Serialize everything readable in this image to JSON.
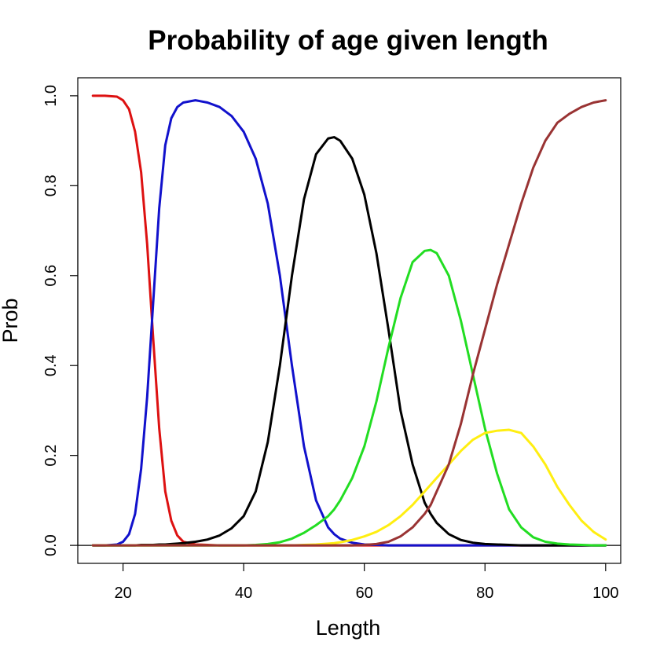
{
  "chart_data": {
    "type": "line",
    "title": "Probability of age given length",
    "xlabel": "Length",
    "ylabel": "Prob",
    "xlim": [
      12.5,
      102.5
    ],
    "ylim": [
      -0.04,
      1.04
    ],
    "xticks": [
      20,
      40,
      60,
      80,
      100
    ],
    "xtick_labels": [
      "20",
      "40",
      "60",
      "80",
      "100"
    ],
    "yticks": [
      0,
      0.2,
      0.4,
      0.6,
      0.8,
      1
    ],
    "ytick_labels": [
      "0.0",
      "0.2",
      "0.4",
      "0.6",
      "0.8",
      "1.0"
    ],
    "grid": false,
    "hline": 0,
    "x": [
      15,
      17,
      19,
      20,
      21,
      22,
      23,
      24,
      25,
      26,
      27,
      28,
      29,
      30,
      32,
      34,
      36,
      38,
      40,
      42,
      44,
      46,
      48,
      50,
      52,
      54,
      55,
      56,
      58,
      60,
      62,
      64,
      66,
      68,
      70,
      71,
      72,
      74,
      76,
      78,
      80,
      82,
      84,
      86,
      88,
      90,
      92,
      94,
      96,
      98,
      100
    ],
    "series": [
      {
        "color": "#dd1111",
        "values": [
          1.0,
          1.0,
          0.998,
          0.99,
          0.97,
          0.92,
          0.83,
          0.67,
          0.46,
          0.26,
          0.12,
          0.055,
          0.022,
          0.008,
          0.002,
          0.001,
          0,
          0,
          0,
          0,
          0,
          0,
          0,
          0,
          0,
          0,
          0,
          0,
          0,
          0,
          0,
          0,
          0,
          0,
          0,
          0,
          0,
          0,
          0,
          0,
          0,
          0,
          0,
          0,
          0,
          0,
          0,
          0,
          0,
          0,
          0
        ]
      },
      {
        "color": "#1111cc",
        "values": [
          0,
          0,
          0.002,
          0.008,
          0.025,
          0.07,
          0.17,
          0.33,
          0.54,
          0.75,
          0.89,
          0.95,
          0.975,
          0.985,
          0.99,
          0.985,
          0.975,
          0.955,
          0.92,
          0.86,
          0.76,
          0.6,
          0.4,
          0.22,
          0.1,
          0.04,
          0.025,
          0.015,
          0.006,
          0.002,
          0.001,
          0,
          0,
          0,
          0,
          0,
          0,
          0,
          0,
          0,
          0,
          0,
          0,
          0,
          0,
          0,
          0,
          0,
          0,
          0,
          0
        ]
      },
      {
        "color": "#000000",
        "values": [
          0,
          0,
          0,
          0,
          0,
          0,
          0.001,
          0.001,
          0.001,
          0.002,
          0.002,
          0.003,
          0.004,
          0.005,
          0.008,
          0.013,
          0.022,
          0.038,
          0.065,
          0.12,
          0.23,
          0.4,
          0.6,
          0.77,
          0.87,
          0.905,
          0.908,
          0.9,
          0.86,
          0.78,
          0.65,
          0.48,
          0.3,
          0.18,
          0.095,
          0.07,
          0.05,
          0.025,
          0.012,
          0.006,
          0.003,
          0.002,
          0.001,
          0,
          0,
          0,
          0,
          0,
          0,
          0,
          0
        ]
      },
      {
        "color": "#22dd22",
        "values": [
          0,
          0,
          0,
          0,
          0,
          0,
          0,
          0,
          0,
          0,
          0,
          0,
          0,
          0,
          0,
          0,
          0,
          0,
          0,
          0.001,
          0.003,
          0.007,
          0.015,
          0.028,
          0.045,
          0.065,
          0.08,
          0.1,
          0.15,
          0.22,
          0.32,
          0.44,
          0.55,
          0.63,
          0.655,
          0.657,
          0.65,
          0.6,
          0.5,
          0.38,
          0.26,
          0.16,
          0.08,
          0.04,
          0.018,
          0.008,
          0.004,
          0.002,
          0.001,
          0,
          0
        ]
      },
      {
        "color": "#ffee11",
        "values": [
          0,
          0,
          0,
          0,
          0,
          0,
          0,
          0,
          0,
          0,
          0,
          0,
          0,
          0,
          0,
          0,
          0,
          0,
          0,
          0,
          0,
          0,
          0,
          0.001,
          0.002,
          0.004,
          0.005,
          0.007,
          0.012,
          0.02,
          0.03,
          0.045,
          0.065,
          0.09,
          0.12,
          0.135,
          0.15,
          0.18,
          0.21,
          0.235,
          0.25,
          0.255,
          0.257,
          0.25,
          0.22,
          0.18,
          0.13,
          0.09,
          0.055,
          0.03,
          0.013
        ]
      },
      {
        "color": "#993333",
        "values": [
          0,
          0,
          0,
          0,
          0,
          0,
          0,
          0,
          0,
          0,
          0,
          0,
          0,
          0,
          0,
          0,
          0,
          0,
          0,
          0,
          0,
          0,
          0,
          0,
          0,
          0,
          0,
          0,
          0,
          0.001,
          0.003,
          0.008,
          0.02,
          0.04,
          0.07,
          0.09,
          0.12,
          0.18,
          0.27,
          0.38,
          0.48,
          0.58,
          0.67,
          0.76,
          0.84,
          0.9,
          0.94,
          0.96,
          0.975,
          0.985,
          0.99
        ]
      }
    ]
  }
}
